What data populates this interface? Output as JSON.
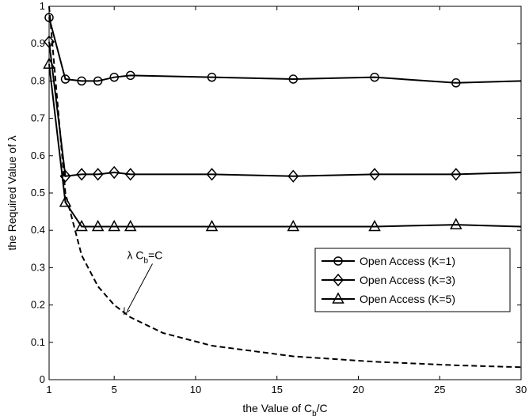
{
  "chart_data": {
    "type": "line",
    "title": "",
    "xlabel": "the Value of C_b/C",
    "ylabel": "the Required Value of λ",
    "xlim": [
      1,
      30
    ],
    "ylim": [
      0,
      1
    ],
    "xticks": [
      1,
      5,
      10,
      15,
      20,
      25,
      30
    ],
    "yticks": [
      0,
      0.1,
      0.2,
      0.3,
      0.4,
      0.5,
      0.6,
      0.7,
      0.8,
      0.9,
      1
    ],
    "grid": false,
    "legend_position": "middle-right",
    "series": [
      {
        "name": "Open Access (K=1)",
        "marker": "circle",
        "style": "solid",
        "marker_x": [
          1,
          2,
          3,
          4,
          5,
          6,
          11,
          16,
          21,
          26
        ],
        "x": [
          1,
          2,
          3,
          4,
          5,
          6,
          11,
          16,
          21,
          26,
          30
        ],
        "values": [
          0.97,
          0.805,
          0.8,
          0.8,
          0.81,
          0.815,
          0.81,
          0.805,
          0.81,
          0.795,
          0.8
        ]
      },
      {
        "name": "Open Access (K=3)",
        "marker": "diamond",
        "style": "solid",
        "marker_x": [
          1,
          2,
          3,
          4,
          5,
          6,
          11,
          16,
          21,
          26
        ],
        "x": [
          1,
          2,
          3,
          4,
          5,
          6,
          11,
          16,
          21,
          26,
          30
        ],
        "values": [
          0.905,
          0.545,
          0.55,
          0.55,
          0.555,
          0.55,
          0.55,
          0.545,
          0.55,
          0.55,
          0.555
        ]
      },
      {
        "name": "Open Access (K=5)",
        "marker": "triangle",
        "style": "solid",
        "marker_x": [
          1,
          2,
          3,
          4,
          5,
          6,
          11,
          16,
          21,
          26
        ],
        "x": [
          1,
          2,
          3,
          4,
          5,
          6,
          11,
          16,
          21,
          26,
          30
        ],
        "values": [
          0.845,
          0.475,
          0.41,
          0.41,
          0.41,
          0.41,
          0.41,
          0.41,
          0.41,
          0.415,
          0.41
        ]
      },
      {
        "name": "",
        "marker": "none",
        "style": "dashed",
        "marker_x": [],
        "x": [
          1,
          2,
          3,
          4,
          5,
          6,
          8,
          11,
          16,
          21,
          26,
          30
        ],
        "values": [
          1.0,
          0.5,
          0.333,
          0.25,
          0.2,
          0.167,
          0.125,
          0.091,
          0.0625,
          0.048,
          0.0385,
          0.0333
        ]
      }
    ],
    "annotation": {
      "text_main": "λ C",
      "text_sub": "b",
      "text_tail": "=C",
      "points_to_x": 5.6,
      "points_to_y": 0.175
    }
  }
}
